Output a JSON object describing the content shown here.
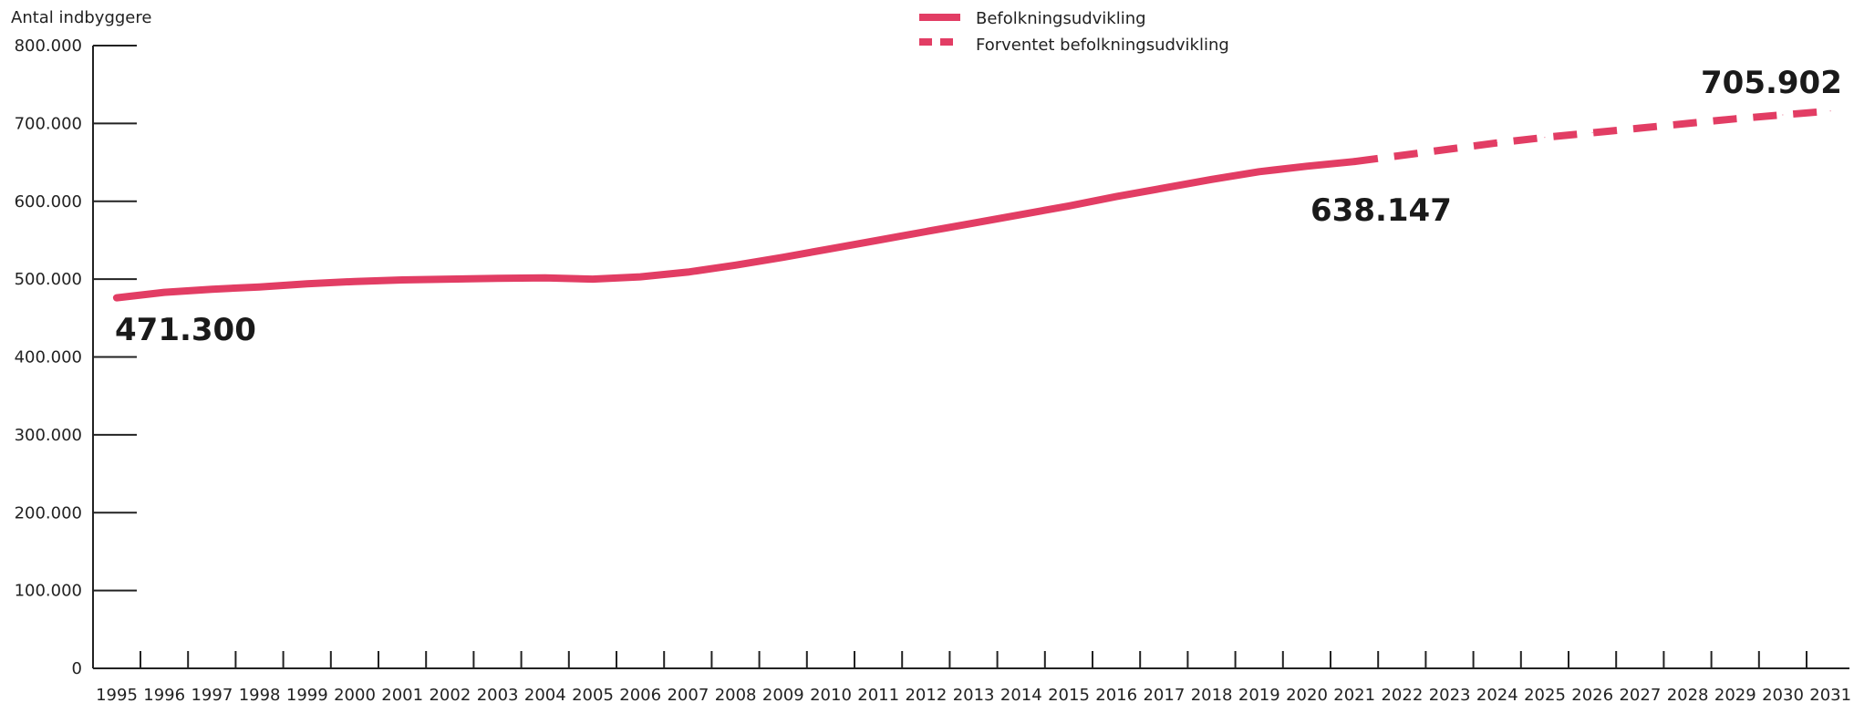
{
  "chart_data": {
    "type": "line",
    "ylabel": "Antal indbyggere",
    "ylim": [
      0,
      800000
    ],
    "y_ticks": [
      "0",
      "100.000",
      "200.000",
      "300.000",
      "400.000",
      "500.000",
      "600.000",
      "700.000",
      "800.000"
    ],
    "y_tick_values": [
      0,
      100000,
      200000,
      300000,
      400000,
      500000,
      600000,
      700000,
      800000
    ],
    "x_ticks": [
      "1995",
      "1996",
      "1997",
      "1998",
      "1999",
      "2000",
      "2001",
      "2002",
      "2003",
      "2004",
      "2005",
      "2006",
      "2007",
      "2008",
      "2009",
      "2010",
      "2011",
      "2012",
      "2013",
      "2014",
      "2015",
      "2016",
      "2017",
      "2018",
      "2019",
      "2020",
      "2021",
      "2022",
      "2023",
      "2024",
      "2025",
      "2026",
      "2027",
      "2028",
      "2029",
      "2030",
      "2031"
    ],
    "legend": [
      "Befolkningsudvikling",
      "Forventet befolkningsudvikling"
    ],
    "legend_placement": "top-center",
    "grid": false,
    "series": [
      {
        "name": "Befolkningsudvikling",
        "style": "solid",
        "color": "#e23d64",
        "x": [
          1995.5,
          1996.5,
          1997.5,
          1998.5,
          1999.5,
          2000.5,
          2001.5,
          2002.5,
          2003.5,
          2004.5,
          2005.5,
          2006.5,
          2007.5,
          2008.5,
          2009.5,
          2010.5,
          2011.5,
          2012.5,
          2013.5,
          2014.5,
          2015.5,
          2016.5,
          2017.5,
          2018.5,
          2019.5,
          2020.5,
          2021.5
        ],
        "values": [
          476000,
          483000,
          487000,
          490000,
          494000,
          497000,
          499000,
          500000,
          501000,
          501500,
          500000,
          503000,
          509000,
          518000,
          528000,
          539000,
          550000,
          561000,
          572000,
          583000,
          594000,
          606000,
          617000,
          628000,
          638000,
          645000,
          651000
        ]
      },
      {
        "name": "Forventet befolkningsudvikling",
        "style": "dashed",
        "color": "#e23d64",
        "x": [
          2021.5,
          2022.5,
          2023.5,
          2024.5,
          2025.5,
          2026.5,
          2027.5,
          2028.5,
          2029.5,
          2030.5,
          2031.5
        ],
        "values": [
          651000,
          659000,
          667000,
          675000,
          682000,
          688000,
          694000,
          700000,
          706000,
          711000,
          716000
        ]
      }
    ],
    "annotations": [
      "471.300",
      "638.147",
      "705.902"
    ]
  }
}
